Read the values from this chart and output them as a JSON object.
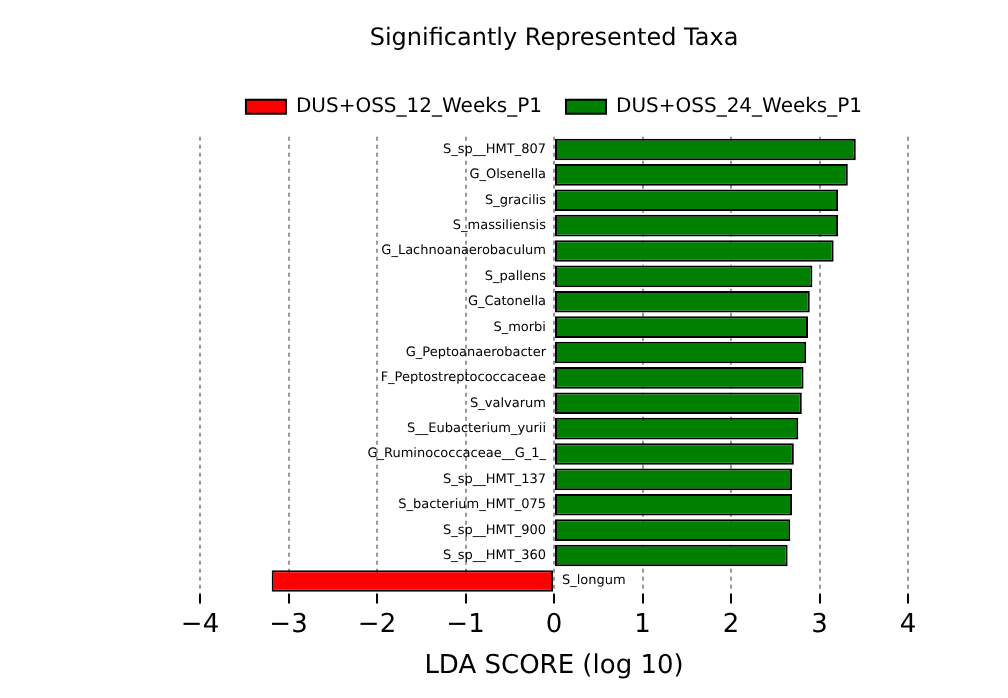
{
  "chart_data": {
    "type": "bar",
    "orientation": "horizontal",
    "title": "Significantly Represented Taxa",
    "xlabel": "LDA SCORE (log 10)",
    "categories": [
      "S_sp__HMT_807",
      "G_Olsenella",
      "S_gracilis",
      "S_massiliensis",
      "G_Lachnoanaerobaculum",
      "S_pallens",
      "G_Catonella",
      "S_morbi",
      "G_Peptoanaerobacter",
      "F_Peptostreptococcaceae",
      "S_valvarum",
      "S__Eubacterium_yurii",
      "G_Ruminococcaceae__G_1_",
      "S_sp__HMT_137",
      "S_bacterium_HMT_075",
      "S_sp__HMT_900",
      "S_sp__HMT_360",
      "S_longum"
    ],
    "series": [
      {
        "name": "DUS+OSS_12_Weeks_P1",
        "color": "#ff0000",
        "values": [
          null,
          null,
          null,
          null,
          null,
          null,
          null,
          null,
          null,
          null,
          null,
          null,
          null,
          null,
          null,
          null,
          null,
          -3.19
        ]
      },
      {
        "name": "DUS+OSS_24_Weeks_P1",
        "color": "#008000",
        "values": [
          3.41,
          3.32,
          3.21,
          3.21,
          3.16,
          2.92,
          2.89,
          2.87,
          2.85,
          2.82,
          2.8,
          2.76,
          2.71,
          2.69,
          2.69,
          2.67,
          2.64,
          null
        ]
      }
    ],
    "xlim": [
      -4,
      4
    ],
    "xticks": [
      -4,
      -3,
      -2,
      -1,
      0,
      1,
      2,
      3,
      4
    ],
    "grid": "x",
    "legend": "top"
  }
}
